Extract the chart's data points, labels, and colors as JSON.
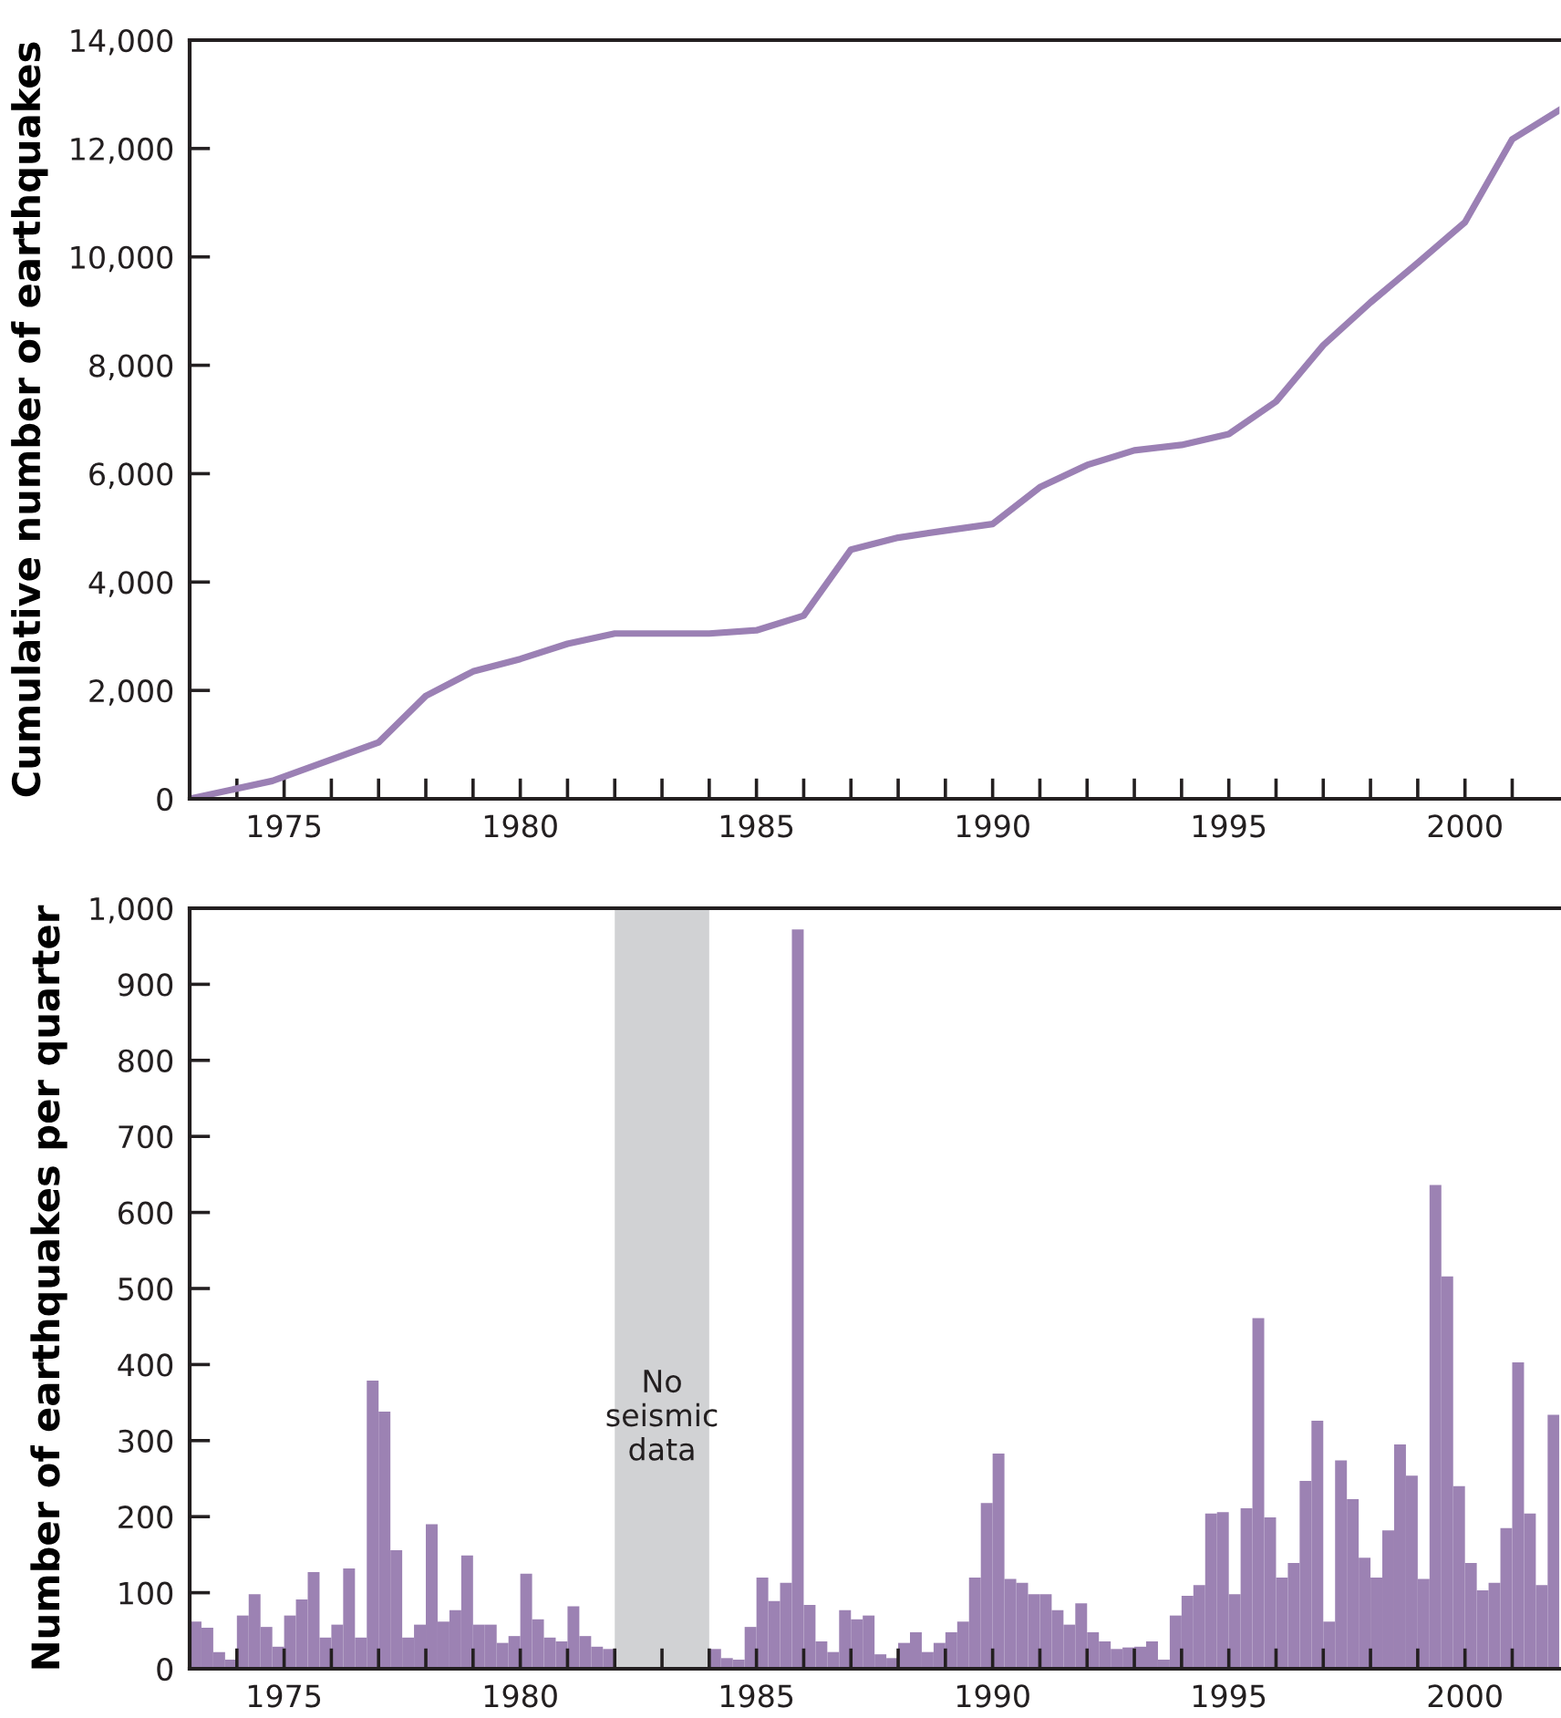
{
  "chart_data": [
    {
      "type": "line",
      "ylabel": "Cumulative number of earthquakes",
      "x": [
        1973,
        1974.75,
        1977,
        1978,
        1979,
        1980,
        1981,
        1982,
        1984,
        1985,
        1986,
        1987,
        1988,
        1989,
        1990,
        1991,
        1992,
        1993,
        1994,
        1995,
        1996,
        1997,
        1998,
        1999,
        2000,
        2001,
        2002
      ],
      "values": [
        0,
        330,
        1040,
        1900,
        2350,
        2580,
        2860,
        3050,
        3050,
        3110,
        3380,
        4600,
        4820,
        4950,
        5070,
        5750,
        6160,
        6430,
        6530,
        6730,
        7330,
        8370,
        9160,
        9890,
        10640,
        12170,
        12710
      ],
      "color": "#9b80b4",
      "xlim": [
        1973,
        2002
      ],
      "xticks": [
        {
          "value": 1974,
          "label": null
        },
        1975,
        {
          "value": 1976,
          "label": null
        },
        {
          "value": 1977,
          "label": null
        },
        {
          "value": 1978,
          "label": null
        },
        {
          "value": 1979,
          "label": null
        },
        1980,
        {
          "value": 1981,
          "label": null
        },
        {
          "value": 1982,
          "label": null
        },
        {
          "value": 1983,
          "label": null
        },
        {
          "value": 1984,
          "label": null
        },
        1985,
        {
          "value": 1986,
          "label": null
        },
        {
          "value": 1987,
          "label": null
        },
        {
          "value": 1988,
          "label": null
        },
        {
          "value": 1989,
          "label": null
        },
        1990,
        {
          "value": 1991,
          "label": null
        },
        {
          "value": 1992,
          "label": null
        },
        {
          "value": 1993,
          "label": null
        },
        {
          "value": 1994,
          "label": null
        },
        1995,
        {
          "value": 1996,
          "label": null
        },
        {
          "value": 1997,
          "label": null
        },
        {
          "value": 1998,
          "label": null
        },
        {
          "value": 1999,
          "label": null
        },
        2000,
        {
          "value": 2001,
          "label": null
        }
      ],
      "ylim": [
        0,
        14000
      ],
      "yticks": [
        0,
        {
          "value": 2000,
          "label": "2,000"
        },
        {
          "value": 4000,
          "label": "4,000"
        },
        {
          "value": 6000,
          "label": "6,000"
        },
        {
          "value": 8000,
          "label": "8,000"
        },
        {
          "value": 10000,
          "label": "10,000"
        },
        {
          "value": 12000,
          "label": "12,000"
        },
        {
          "value": 14000,
          "label": "14,000"
        }
      ],
      "grid": false,
      "legend": false
    },
    {
      "type": "histogram",
      "ylabel": "Number of earthquakes per quarter",
      "bins": [
        1973,
        1973.25,
        1973.5,
        1973.75,
        1974,
        1974.25,
        1974.5,
        1974.75,
        1975,
        1975.25,
        1975.5,
        1975.75,
        1976,
        1976.25,
        1976.5,
        1976.75,
        1977,
        1977.25,
        1977.5,
        1977.75,
        1978,
        1978.25,
        1978.5,
        1978.75,
        1979,
        1979.25,
        1979.5,
        1979.75,
        1980,
        1980.25,
        1980.5,
        1980.75,
        1981,
        1981.25,
        1981.5,
        1981.75,
        1982,
        1982.25,
        1982.5,
        1982.75,
        1983,
        1983.25,
        1983.5,
        1983.75,
        1984,
        1984.25,
        1984.5,
        1984.75,
        1985,
        1985.25,
        1985.5,
        1985.75,
        1986,
        1986.25,
        1986.5,
        1986.75,
        1987,
        1987.25,
        1987.5,
        1987.75,
        1988,
        1988.25,
        1988.5,
        1988.75,
        1989,
        1989.25,
        1989.5,
        1989.75,
        1990,
        1990.25,
        1990.5,
        1990.75,
        1991,
        1991.25,
        1991.5,
        1991.75,
        1992,
        1992.25,
        1992.5,
        1992.75,
        1993,
        1993.25,
        1993.5,
        1993.75,
        1994,
        1994.25,
        1994.5,
        1994.75,
        1995,
        1995.25,
        1995.5,
        1995.75,
        1996,
        1996.25,
        1996.5,
        1996.75,
        1997,
        1997.25,
        1997.5,
        1997.75,
        1998,
        1998.25,
        1998.5,
        1998.75,
        1999,
        1999.25,
        1999.5,
        1999.75,
        2000,
        2000.25,
        2000.5,
        2000.75,
        2001,
        2001.25,
        2001.5,
        2001.75,
        2002
      ],
      "values": [
        62,
        54,
        22,
        12,
        70,
        98,
        55,
        29,
        70,
        91,
        127,
        41,
        58,
        132,
        41,
        379,
        338,
        156,
        41,
        58,
        190,
        62,
        77,
        149,
        58,
        58,
        34,
        43,
        125,
        65,
        41,
        36,
        82,
        43,
        29,
        26,
        null,
        null,
        null,
        null,
        null,
        null,
        null,
        null,
        26,
        14,
        12,
        55,
        120,
        89,
        113,
        972,
        84,
        36,
        22,
        77,
        65,
        70,
        19,
        14,
        34,
        48,
        22,
        34,
        48,
        62,
        120,
        218,
        283,
        118,
        113,
        98,
        98,
        77,
        58,
        86,
        48,
        36,
        26,
        28,
        29,
        36,
        12,
        70,
        96,
        110,
        204,
        206,
        98,
        211,
        461,
        199,
        120,
        139,
        247,
        326,
        62,
        274,
        223,
        146,
        120,
        182,
        295,
        254,
        118,
        636,
        516,
        240,
        139,
        103,
        113,
        185,
        403,
        204,
        110,
        334
      ],
      "color": "#9c82b3",
      "bands": [
        {
          "axis": "x",
          "from": 1982,
          "to": 1984,
          "label": "No\nseismic\ndata",
          "color": "#d1d2d4"
        }
      ],
      "xlim": [
        1973,
        2002
      ],
      "xticks": [
        {
          "value": 1974,
          "label": null
        },
        1975,
        {
          "value": 1976,
          "label": null
        },
        {
          "value": 1977,
          "label": null
        },
        {
          "value": 1978,
          "label": null
        },
        {
          "value": 1979,
          "label": null
        },
        1980,
        {
          "value": 1981,
          "label": null
        },
        {
          "value": 1982,
          "label": null
        },
        {
          "value": 1983,
          "label": null
        },
        {
          "value": 1984,
          "label": null
        },
        1985,
        {
          "value": 1986,
          "label": null
        },
        {
          "value": 1987,
          "label": null
        },
        {
          "value": 1988,
          "label": null
        },
        {
          "value": 1989,
          "label": null
        },
        1990,
        {
          "value": 1991,
          "label": null
        },
        {
          "value": 1992,
          "label": null
        },
        {
          "value": 1993,
          "label": null
        },
        {
          "value": 1994,
          "label": null
        },
        1995,
        {
          "value": 1996,
          "label": null
        },
        {
          "value": 1997,
          "label": null
        },
        {
          "value": 1998,
          "label": null
        },
        {
          "value": 1999,
          "label": null
        },
        2000,
        {
          "value": 2001,
          "label": null
        }
      ],
      "ylim": [
        0,
        1000
      ],
      "yticks": [
        0,
        100,
        200,
        300,
        400,
        500,
        600,
        700,
        800,
        900,
        {
          "value": 1000,
          "label": "1,000"
        }
      ],
      "grid": false,
      "legend": false
    }
  ]
}
